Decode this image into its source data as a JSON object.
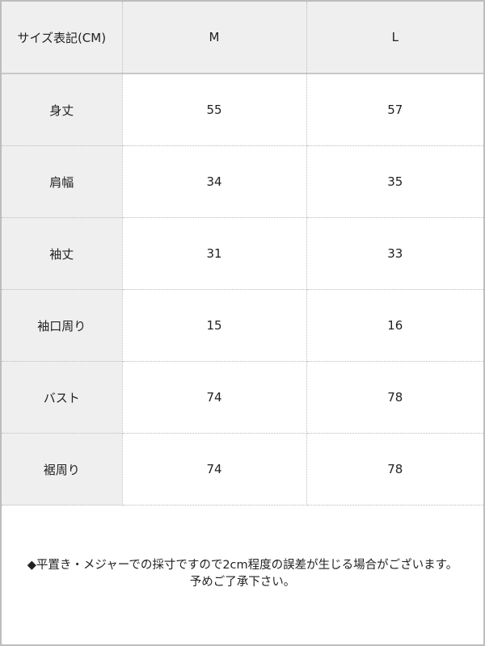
{
  "table": {
    "header": [
      "サイズ表記(CM)",
      "M",
      "L"
    ],
    "rows": [
      {
        "label": "身丈",
        "values": [
          "55",
          "57"
        ]
      },
      {
        "label": "肩幅",
        "values": [
          "34",
          "35"
        ]
      },
      {
        "label": "袖丈",
        "values": [
          "31",
          "33"
        ]
      },
      {
        "label": "袖口周り",
        "values": [
          "15",
          "16"
        ]
      },
      {
        "label": "バスト",
        "values": [
          "74",
          "78"
        ]
      },
      {
        "label": "裾周り",
        "values": [
          "74",
          "78"
        ]
      }
    ]
  },
  "note": {
    "line1": "◆平置き・メジャーでの採寸ですので2cm程度の誤差が生じる場合がございます。",
    "line2": "予めご了承下さい。"
  }
}
